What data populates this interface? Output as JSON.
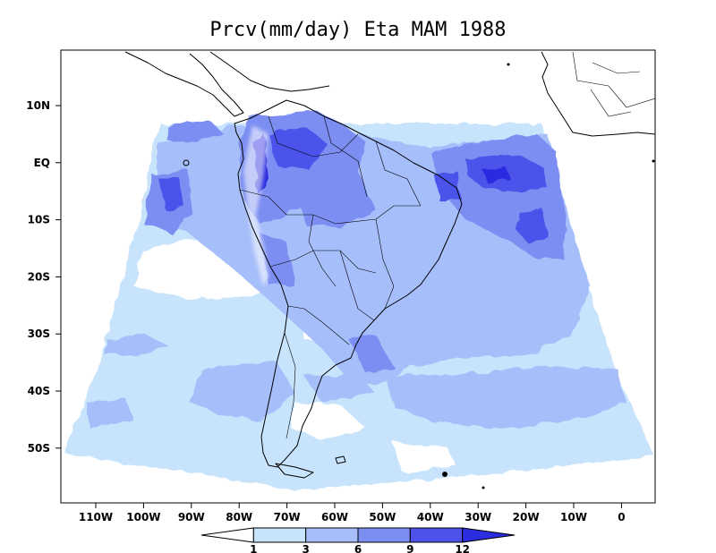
{
  "title": "Prcv(mm/day) Eta MAM 1988",
  "y_labels": [
    "10N",
    "EQ",
    "10S",
    "20S",
    "30S",
    "40S",
    "50S"
  ],
  "x_labels": [
    "110W",
    "100W",
    "90W",
    "80W",
    "70W",
    "60W",
    "50W",
    "40W",
    "30W",
    "20W",
    "10W",
    "0"
  ],
  "colorbar": {
    "labels": [
      "1",
      "3",
      "6",
      "9",
      "12"
    ],
    "colors": [
      "#ffffff",
      "#c8e4fc",
      "#a6befa",
      "#7c8ef2",
      "#4c52ea",
      "#2c2ce0"
    ]
  }
}
